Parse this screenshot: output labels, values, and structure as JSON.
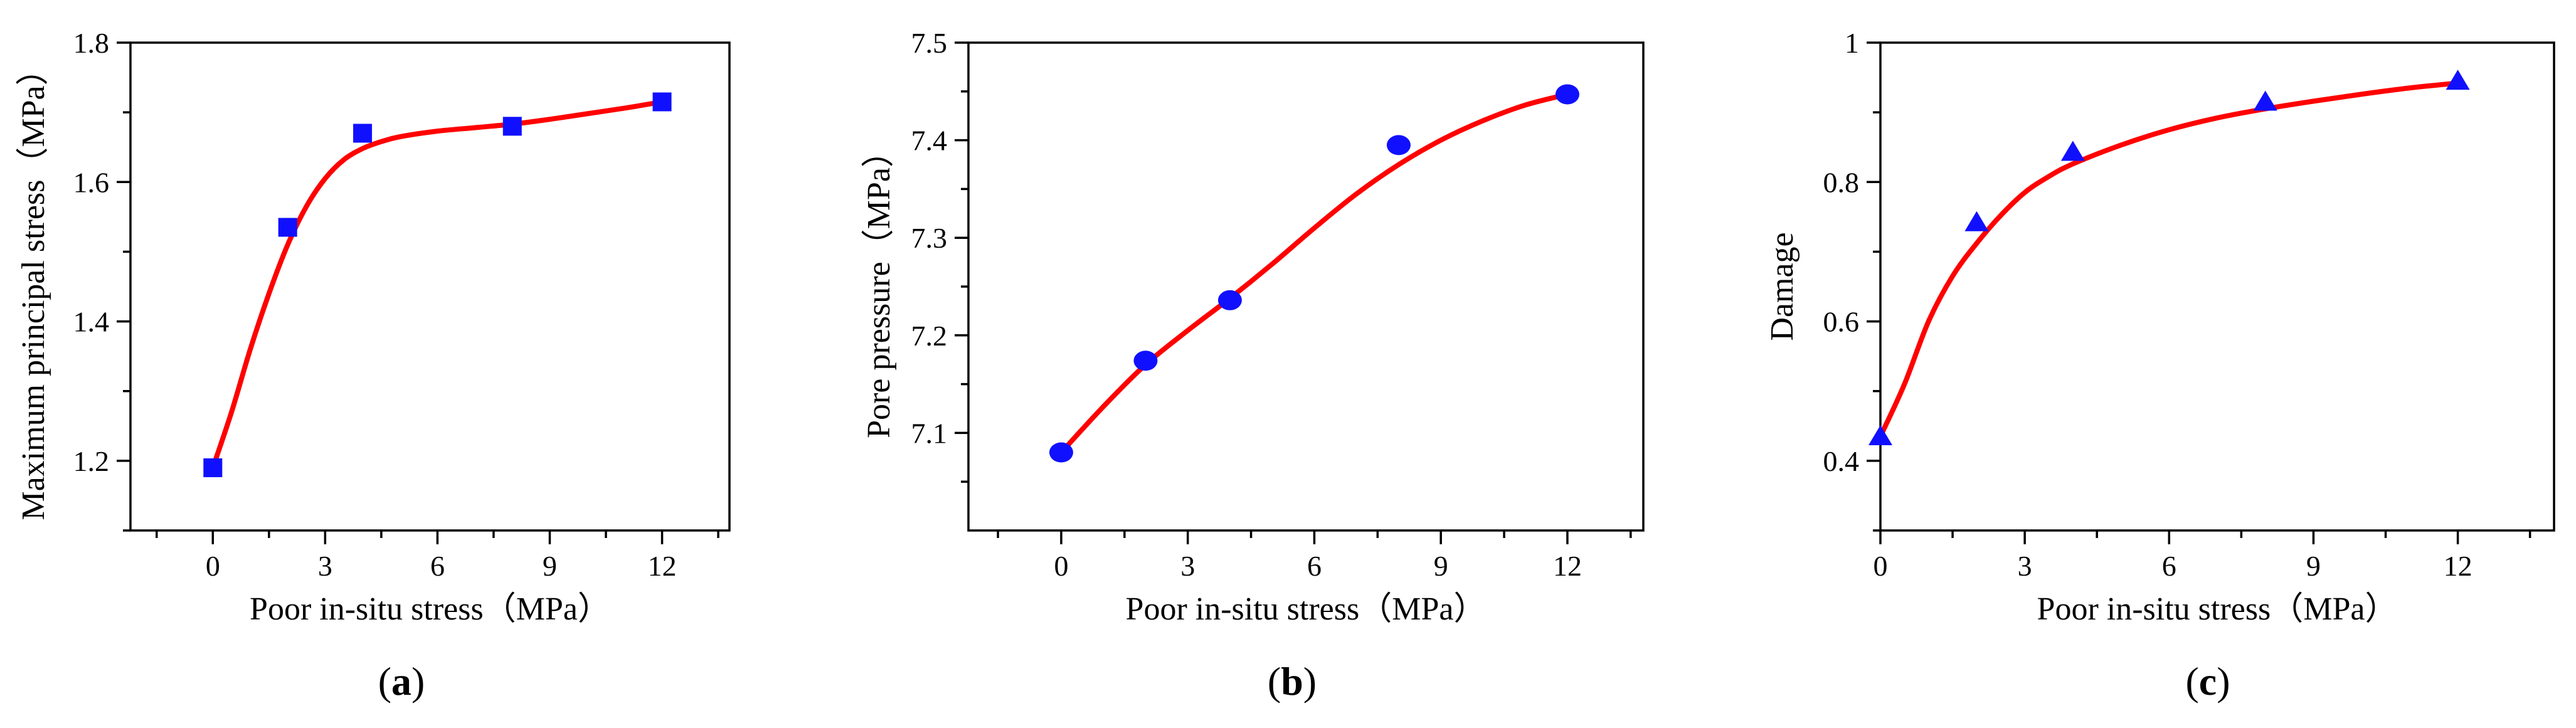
{
  "chart_data": [
    {
      "type": "scatter",
      "panel_label": "a",
      "xlabel": "Poor in-situ stress（MPa）",
      "ylabel": "Maximum principal stress（MPa）",
      "xlim": [
        -2.2,
        13.8
      ],
      "ylim": [
        1.1,
        1.8
      ],
      "xticks": [
        0,
        3,
        6,
        9,
        12
      ],
      "xtick_labels": [
        "0",
        "3",
        "6",
        "9",
        "12"
      ],
      "yticks": [
        1.2,
        1.4,
        1.6,
        1.8
      ],
      "ytick_labels": [
        "1.2",
        "1.4",
        "1.6",
        "1.8"
      ],
      "marker": "square",
      "marker_color": "#1010ff",
      "line_color": "#ff0000",
      "points": {
        "x": [
          0,
          2,
          4,
          8,
          12
        ],
        "y": [
          1.19,
          1.535,
          1.67,
          1.68,
          1.715
        ]
      },
      "fit_curve": {
        "x": [
          0,
          0.5,
          1,
          1.5,
          2,
          2.5,
          3,
          3.5,
          4,
          4.5,
          5,
          6,
          7,
          8,
          9,
          10,
          11,
          12
        ],
        "y": [
          1.19,
          1.27,
          1.36,
          1.44,
          1.51,
          1.565,
          1.605,
          1.632,
          1.648,
          1.658,
          1.665,
          1.673,
          1.678,
          1.683,
          1.69,
          1.698,
          1.706,
          1.715
        ]
      }
    },
    {
      "type": "scatter",
      "panel_label": "b",
      "xlabel": "Poor in-situ stress（MPa）",
      "ylabel": "Pore pressure（MPa）",
      "xlim": [
        -2.2,
        13.8
      ],
      "ylim": [
        7.0,
        7.5
      ],
      "xticks": [
        0,
        3,
        6,
        9,
        12
      ],
      "xtick_labels": [
        "0",
        "3",
        "6",
        "9",
        "12"
      ],
      "yticks": [
        7.1,
        7.2,
        7.3,
        7.4,
        7.5
      ],
      "ytick_labels": [
        "7.1",
        "7.2",
        "7.3",
        "7.4",
        "7.5"
      ],
      "marker": "circle",
      "marker_color": "#1010ff",
      "line_color": "#ff0000",
      "points": {
        "x": [
          0,
          2,
          4,
          8,
          12
        ],
        "y": [
          7.08,
          7.174,
          7.236,
          7.395,
          7.447
        ]
      },
      "fit_curve": {
        "x": [
          0,
          1,
          2,
          3,
          4,
          5,
          6,
          7,
          8,
          9,
          10,
          11,
          12
        ],
        "y": [
          7.08,
          7.127,
          7.17,
          7.205,
          7.238,
          7.273,
          7.31,
          7.345,
          7.375,
          7.4,
          7.42,
          7.436,
          7.447
        ]
      }
    },
    {
      "type": "scatter",
      "panel_label": "c",
      "xlabel": "Poor in-situ stress（MPa）",
      "ylabel": "Damage",
      "xlim": [
        0,
        14
      ],
      "ylim": [
        0.3,
        1.0
      ],
      "xticks": [
        0,
        3,
        6,
        9,
        12
      ],
      "xtick_labels": [
        "0",
        "3",
        "6",
        "9",
        "12"
      ],
      "yticks": [
        0.4,
        0.6,
        0.8,
        1.0
      ],
      "ytick_labels": [
        "0.4",
        "0.6",
        "0.8",
        "1"
      ],
      "marker": "triangle",
      "marker_color": "#1010ff",
      "line_color": "#ff0000",
      "points": {
        "x": [
          0,
          2,
          4,
          8,
          12
        ],
        "y": [
          0.435,
          0.742,
          0.843,
          0.915,
          0.945
        ]
      },
      "fit_curve": {
        "x": [
          0,
          0.5,
          1,
          1.5,
          2,
          2.5,
          3,
          3.5,
          4,
          5,
          6,
          7,
          8,
          9,
          10,
          11,
          12
        ],
        "y": [
          0.435,
          0.51,
          0.6,
          0.665,
          0.712,
          0.752,
          0.785,
          0.808,
          0.826,
          0.853,
          0.875,
          0.892,
          0.905,
          0.916,
          0.926,
          0.935,
          0.942
        ]
      }
    }
  ]
}
